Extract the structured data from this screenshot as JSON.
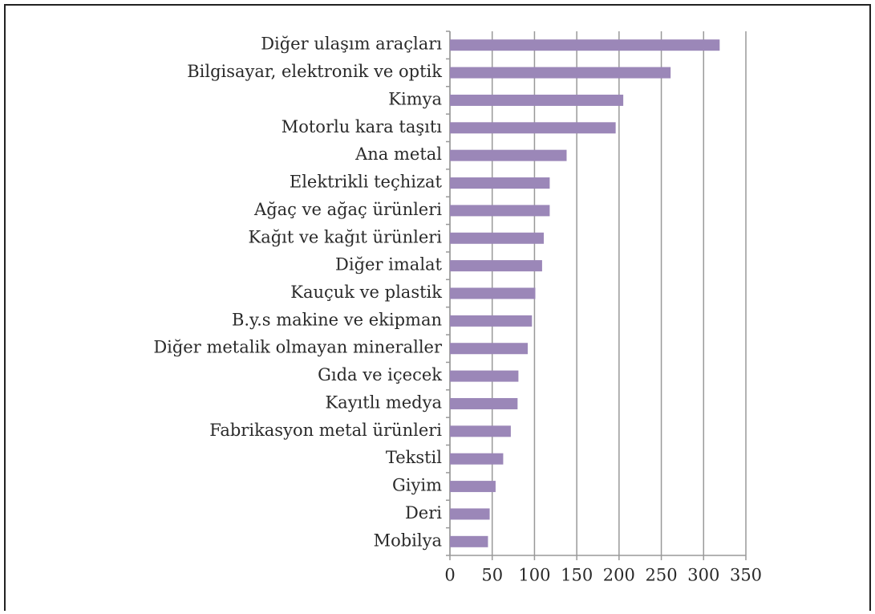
{
  "chart_data": {
    "type": "bar",
    "orientation": "horizontal",
    "categories": [
      "Diğer ulaşım araçları",
      "Bilgisayar, elektronik ve optik",
      "Kimya",
      "Motorlu kara taşıtı",
      "Ana metal",
      "Elektrikli teçhizat",
      "Ağaç ve ağaç ürünleri",
      "Kağıt ve kağıt ürünleri",
      "Diğer imalat",
      "Kauçuk ve plastik",
      "B.y.s makine ve ekipman",
      "Diğer metalik olmayan mineraller",
      "Gıda ve içecek",
      "Kayıtlı medya",
      "Fabrikasyon metal ürünleri",
      "Tekstil",
      "Giyim",
      "Deri",
      "Mobilya"
    ],
    "values": [
      319,
      261,
      205,
      196,
      138,
      118,
      118,
      111,
      109,
      101,
      97,
      92,
      81,
      80,
      72,
      63,
      54,
      47,
      45
    ],
    "color": "#9b87b8",
    "xlim": [
      0,
      350
    ],
    "xticks": [
      0,
      50,
      100,
      150,
      200,
      250,
      300,
      350
    ],
    "grid": true
  }
}
